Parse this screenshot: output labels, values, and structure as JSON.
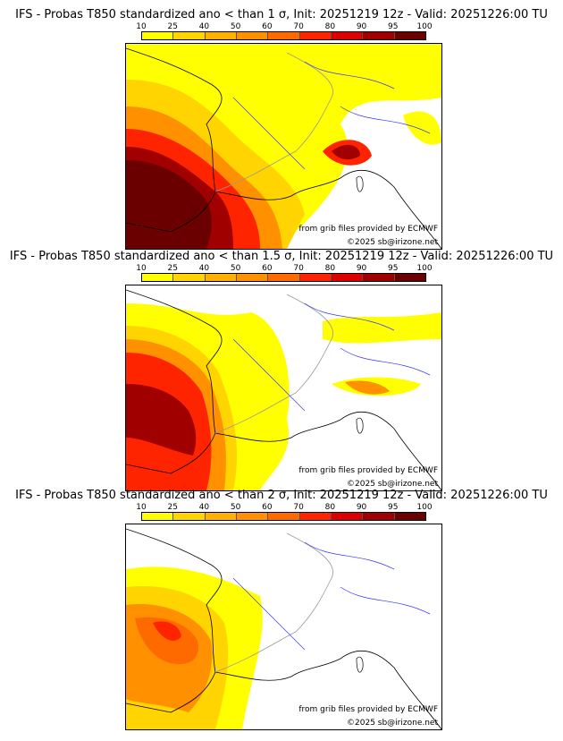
{
  "chart_data": [
    {
      "type": "heatmap",
      "title": "IFS - Probas T850  standardized ano < than 1 σ, Init: 20251219 12z - Valid: 20251226:00 TU",
      "threshold_sigma": 1,
      "colorbar": {
        "ticks": [
          "10",
          "25",
          "40",
          "50",
          "60",
          "70",
          "80",
          "90",
          "95",
          "100"
        ],
        "colors": [
          "#ffff00",
          "#ffd400",
          "#ffb000",
          "#ff9000",
          "#ff6a00",
          "#ff2400",
          "#dd0000",
          "#a00000",
          "#6a0000"
        ]
      },
      "annotations": [
        "from grib files provided by ECMWF",
        "©2025 sb@irizone.net"
      ]
    },
    {
      "type": "heatmap",
      "title": "IFS - Probas T850  standardized ano < than 1.5 σ, Init: 20251219 12z - Valid: 20251226:00 TU",
      "threshold_sigma": 1.5,
      "colorbar": {
        "ticks": [
          "10",
          "25",
          "40",
          "50",
          "60",
          "70",
          "80",
          "90",
          "95",
          "100"
        ],
        "colors": [
          "#ffff00",
          "#ffd400",
          "#ffb000",
          "#ff9000",
          "#ff6a00",
          "#ff2400",
          "#dd0000",
          "#a00000",
          "#6a0000"
        ]
      },
      "annotations": [
        "from grib files provided by ECMWF",
        "©2025 sb@irizone.net"
      ]
    },
    {
      "type": "heatmap",
      "title": "IFS - Probas T850  standardized ano < than 2 σ, Init: 20251219 12z - Valid: 20251226:00 TU",
      "threshold_sigma": 2,
      "colorbar": {
        "ticks": [
          "10",
          "25",
          "40",
          "50",
          "60",
          "70",
          "80",
          "90",
          "95",
          "100"
        ],
        "colors": [
          "#ffff00",
          "#ffd400",
          "#ffb000",
          "#ff9000",
          "#ff6a00",
          "#ff2400",
          "#dd0000",
          "#a00000",
          "#6a0000"
        ]
      },
      "annotations": [
        "from grib files provided by ECMWF",
        "©2025 sb@irizone.net"
      ]
    }
  ]
}
